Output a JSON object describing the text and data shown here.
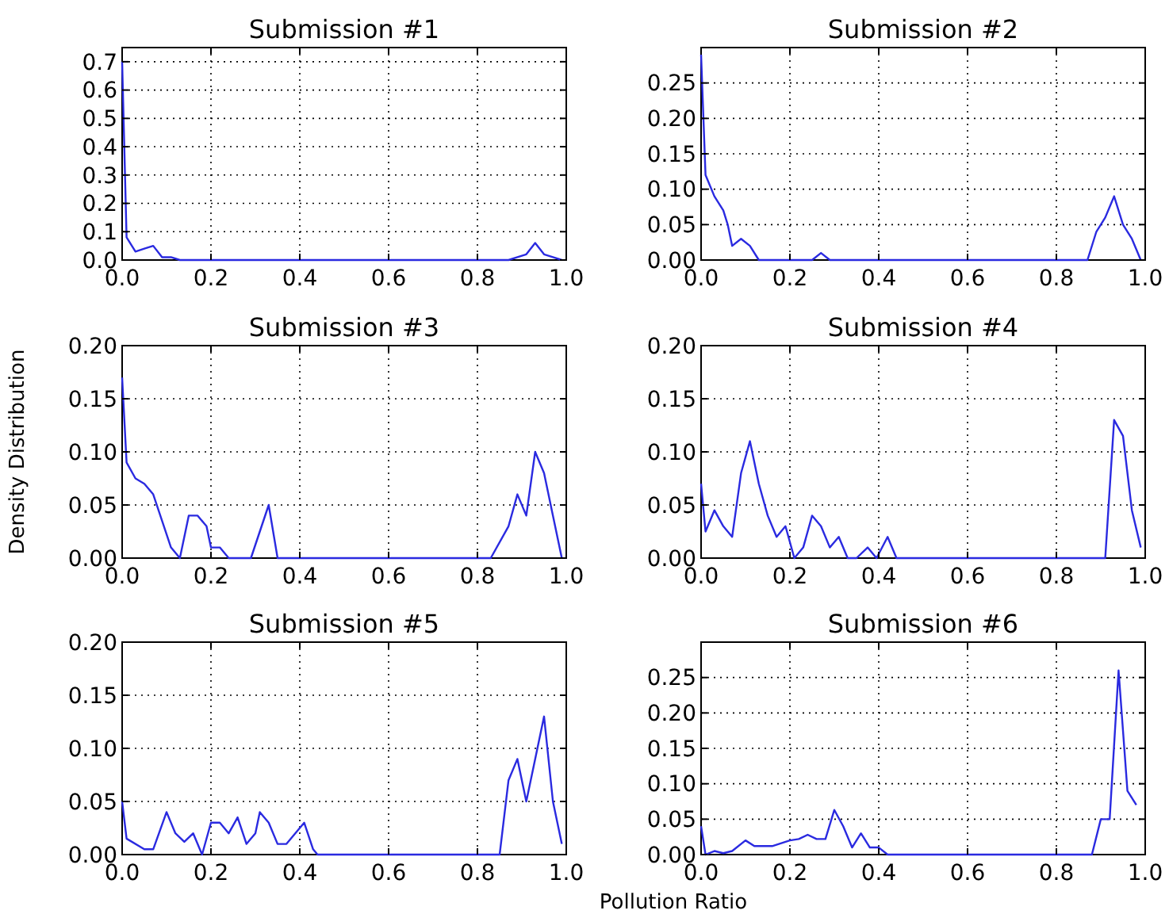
{
  "chart_data": [
    {
      "type": "line",
      "title": "Submission #1",
      "xlim": [
        0,
        1
      ],
      "ylim": [
        0,
        0.75
      ],
      "grid": true,
      "line_style": "solid",
      "marker": "none",
      "xticks": [
        {
          "value": 0,
          "label": "0.0"
        },
        {
          "value": 0.2,
          "label": "0.2"
        },
        {
          "value": 0.4,
          "label": "0.4"
        },
        {
          "value": 0.6,
          "label": "0.6"
        },
        {
          "value": 0.8,
          "label": "0.8"
        },
        {
          "value": 1,
          "label": "1.0"
        }
      ],
      "yticks": [
        {
          "value": 0,
          "label": "0.0"
        },
        0.1,
        0.2,
        0.3,
        0.4,
        0.5,
        0.6,
        0.7
      ],
      "series": [
        {
          "color": "#2a2ae0",
          "x": [
            0,
            0.01,
            0.03,
            0.05,
            0.07,
            0.09,
            0.11,
            0.13,
            0.87,
            0.89,
            0.91,
            0.93,
            0.95,
            0.97,
            0.99
          ],
          "values": [
            0.7,
            0.08,
            0.03,
            0.04,
            0.05,
            0.01,
            0.01,
            0,
            0,
            0.01,
            0.02,
            0.06,
            0.02,
            0.01,
            0
          ]
        }
      ]
    },
    {
      "type": "line",
      "title": "Submission #2",
      "xlim": [
        0,
        1
      ],
      "ylim": [
        0,
        0.3
      ],
      "grid": true,
      "line_style": "solid",
      "marker": "none",
      "xticks": [
        {
          "value": 0,
          "label": "0.0"
        },
        {
          "value": 0.2,
          "label": "0.2"
        },
        {
          "value": 0.4,
          "label": "0.4"
        },
        {
          "value": 0.6,
          "label": "0.6"
        },
        {
          "value": 0.8,
          "label": "0.8"
        },
        {
          "value": 1,
          "label": "1.0"
        }
      ],
      "yticks": [
        {
          "value": 0,
          "label": "0.00"
        },
        0.05,
        {
          "value": 0.1,
          "label": "0.10"
        },
        0.15,
        {
          "value": 0.2,
          "label": "0.20"
        },
        0.25
      ],
      "series": [
        {
          "color": "#2a2ae0",
          "x": [
            0,
            0.01,
            0.03,
            0.05,
            0.06,
            0.07,
            0.09,
            0.11,
            0.13,
            0.25,
            0.27,
            0.29,
            0.87,
            0.89,
            0.91,
            0.93,
            0.95,
            0.97,
            0.99
          ],
          "values": [
            0.29,
            0.12,
            0.09,
            0.07,
            0.05,
            0.02,
            0.03,
            0.02,
            0,
            0,
            0.01,
            0,
            0,
            0.04,
            0.06,
            0.09,
            0.05,
            0.03,
            0
          ]
        }
      ]
    },
    {
      "type": "line",
      "title": "Submission #3",
      "ylabel": "Density Distribution",
      "xlim": [
        0,
        1
      ],
      "ylim": [
        0,
        0.2
      ],
      "grid": true,
      "line_style": "solid",
      "marker": "none",
      "xticks": [
        {
          "value": 0,
          "label": "0.0"
        },
        {
          "value": 0.2,
          "label": "0.2"
        },
        {
          "value": 0.4,
          "label": "0.4"
        },
        {
          "value": 0.6,
          "label": "0.6"
        },
        {
          "value": 0.8,
          "label": "0.8"
        },
        {
          "value": 1,
          "label": "1.0"
        }
      ],
      "yticks": [
        {
          "value": 0,
          "label": "0.00"
        },
        0.05,
        {
          "value": 0.1,
          "label": "0.10"
        },
        0.15,
        {
          "value": 0.2,
          "label": "0.20"
        }
      ],
      "series": [
        {
          "color": "#2a2ae0",
          "x": [
            0,
            0.01,
            0.03,
            0.05,
            0.07,
            0.09,
            0.11,
            0.13,
            0.15,
            0.17,
            0.19,
            0.2,
            0.22,
            0.24,
            0.29,
            0.33,
            0.35,
            0.83,
            0.87,
            0.89,
            0.91,
            0.93,
            0.95,
            0.97,
            0.99
          ],
          "values": [
            0.17,
            0.09,
            0.075,
            0.07,
            0.06,
            0.035,
            0.01,
            0,
            0.04,
            0.04,
            0.03,
            0.01,
            0.01,
            0,
            0,
            0.05,
            0,
            0,
            0.03,
            0.06,
            0.04,
            0.1,
            0.08,
            0.04,
            0
          ]
        }
      ]
    },
    {
      "type": "line",
      "title": "Submission #4",
      "xlim": [
        0,
        1
      ],
      "ylim": [
        0,
        0.2
      ],
      "grid": true,
      "line_style": "solid",
      "marker": "none",
      "xticks": [
        {
          "value": 0,
          "label": "0.0"
        },
        {
          "value": 0.2,
          "label": "0.2"
        },
        {
          "value": 0.4,
          "label": "0.4"
        },
        {
          "value": 0.6,
          "label": "0.6"
        },
        {
          "value": 0.8,
          "label": "0.8"
        },
        {
          "value": 1,
          "label": "1.0"
        }
      ],
      "yticks": [
        {
          "value": 0,
          "label": "0.00"
        },
        0.05,
        {
          "value": 0.1,
          "label": "0.10"
        },
        0.15,
        {
          "value": 0.2,
          "label": "0.20"
        }
      ],
      "series": [
        {
          "color": "#2a2ae0",
          "x": [
            0,
            0.01,
            0.03,
            0.05,
            0.07,
            0.09,
            0.11,
            0.13,
            0.15,
            0.17,
            0.19,
            0.21,
            0.23,
            0.25,
            0.27,
            0.29,
            0.31,
            0.33,
            0.35,
            0.375,
            0.395,
            0.42,
            0.44,
            0.91,
            0.93,
            0.95,
            0.97,
            0.99
          ],
          "values": [
            0.07,
            0.025,
            0.045,
            0.03,
            0.02,
            0.08,
            0.11,
            0.07,
            0.04,
            0.02,
            0.03,
            0,
            0.01,
            0.04,
            0.03,
            0.01,
            0.02,
            0,
            0,
            0.01,
            0,
            0.02,
            0,
            0,
            0.13,
            0.115,
            0.045,
            0.01
          ]
        }
      ]
    },
    {
      "type": "line",
      "title": "Submission #5",
      "xlabel": "Pollution Ratio",
      "xlim": [
        0,
        1
      ],
      "ylim": [
        0,
        0.2
      ],
      "grid": true,
      "line_style": "solid",
      "marker": "none",
      "xticks": [
        {
          "value": 0,
          "label": "0.0"
        },
        {
          "value": 0.2,
          "label": "0.2"
        },
        {
          "value": 0.4,
          "label": "0.4"
        },
        {
          "value": 0.6,
          "label": "0.6"
        },
        {
          "value": 0.8,
          "label": "0.8"
        },
        {
          "value": 1,
          "label": "1.0"
        }
      ],
      "yticks": [
        {
          "value": 0,
          "label": "0.00"
        },
        0.05,
        {
          "value": 0.1,
          "label": "0.10"
        },
        0.15,
        {
          "value": 0.2,
          "label": "0.20"
        }
      ],
      "series": [
        {
          "color": "#2a2ae0",
          "x": [
            0,
            0.01,
            0.05,
            0.07,
            0.1,
            0.12,
            0.14,
            0.16,
            0.18,
            0.2,
            0.22,
            0.24,
            0.26,
            0.28,
            0.3,
            0.31,
            0.33,
            0.35,
            0.37,
            0.41,
            0.43,
            0.44,
            0.85,
            0.87,
            0.89,
            0.91,
            0.93,
            0.95,
            0.97,
            0.99
          ],
          "values": [
            0.05,
            0.015,
            0.005,
            0.005,
            0.04,
            0.02,
            0.012,
            0.02,
            0,
            0.03,
            0.03,
            0.02,
            0.035,
            0.01,
            0.02,
            0.04,
            0.03,
            0.01,
            0.01,
            0.03,
            0.005,
            0,
            0,
            0.07,
            0.09,
            0.05,
            0.09,
            0.13,
            0.05,
            0.01
          ]
        }
      ]
    },
    {
      "type": "line",
      "title": "Submission #6",
      "xlim": [
        0,
        1
      ],
      "ylim": [
        0,
        0.3
      ],
      "grid": true,
      "line_style": "solid",
      "marker": "none",
      "xticks": [
        {
          "value": 0,
          "label": "0.0"
        },
        {
          "value": 0.2,
          "label": "0.2"
        },
        {
          "value": 0.4,
          "label": "0.4"
        },
        {
          "value": 0.6,
          "label": "0.6"
        },
        {
          "value": 0.8,
          "label": "0.8"
        },
        {
          "value": 1,
          "label": "1.0"
        }
      ],
      "yticks": [
        {
          "value": 0,
          "label": "0.00"
        },
        0.05,
        {
          "value": 0.1,
          "label": "0.10"
        },
        0.15,
        {
          "value": 0.2,
          "label": "0.20"
        },
        0.25
      ],
      "series": [
        {
          "color": "#2a2ae0",
          "x": [
            0,
            0.01,
            0.03,
            0.05,
            0.07,
            0.1,
            0.12,
            0.16,
            0.2,
            0.22,
            0.24,
            0.26,
            0.28,
            0.3,
            0.32,
            0.34,
            0.36,
            0.38,
            0.4,
            0.42,
            0.88,
            0.9,
            0.92,
            0.94,
            0.96,
            0.98
          ],
          "values": [
            0.04,
            0,
            0.005,
            0.002,
            0.005,
            0.02,
            0.012,
            0.012,
            0.02,
            0.022,
            0.028,
            0.022,
            0.022,
            0.063,
            0.04,
            0.01,
            0.03,
            0.01,
            0.01,
            0,
            0,
            0.05,
            0.05,
            0.26,
            0.09,
            0.07
          ]
        }
      ]
    }
  ]
}
